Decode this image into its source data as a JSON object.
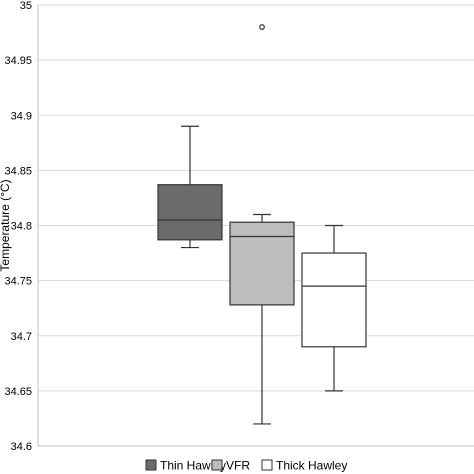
{
  "chart_data": {
    "type": "box",
    "title": "",
    "xlabel": "",
    "ylabel": "Temperature (°C)",
    "ylim": [
      34.6,
      35.0
    ],
    "yticks": [
      34.6,
      34.65,
      34.7,
      34.75,
      34.8,
      34.85,
      34.9,
      34.95,
      35
    ],
    "ytick_labels": [
      "34.6",
      "34.65",
      "34.7",
      "34.75",
      "34.8",
      "34.85",
      "34.9",
      "34.95",
      "35"
    ],
    "grid": "horizontal",
    "legend_position": "bottom",
    "series": [
      {
        "name": "Thin Hawley",
        "color": "#6b6b6b",
        "min": 34.78,
        "q1": 34.787,
        "median": 34.805,
        "q3": 34.837,
        "max": 34.89,
        "outliers": []
      },
      {
        "name": "VFR",
        "color": "#bdbdbd",
        "min": 34.62,
        "q1": 34.728,
        "median": 34.79,
        "q3": 34.803,
        "max": 34.81,
        "outliers": [
          34.98
        ]
      },
      {
        "name": "Thick Hawley",
        "color": "#ffffff",
        "min": 34.65,
        "q1": 34.69,
        "median": 34.745,
        "q3": 34.775,
        "max": 34.8,
        "outliers": []
      }
    ]
  }
}
